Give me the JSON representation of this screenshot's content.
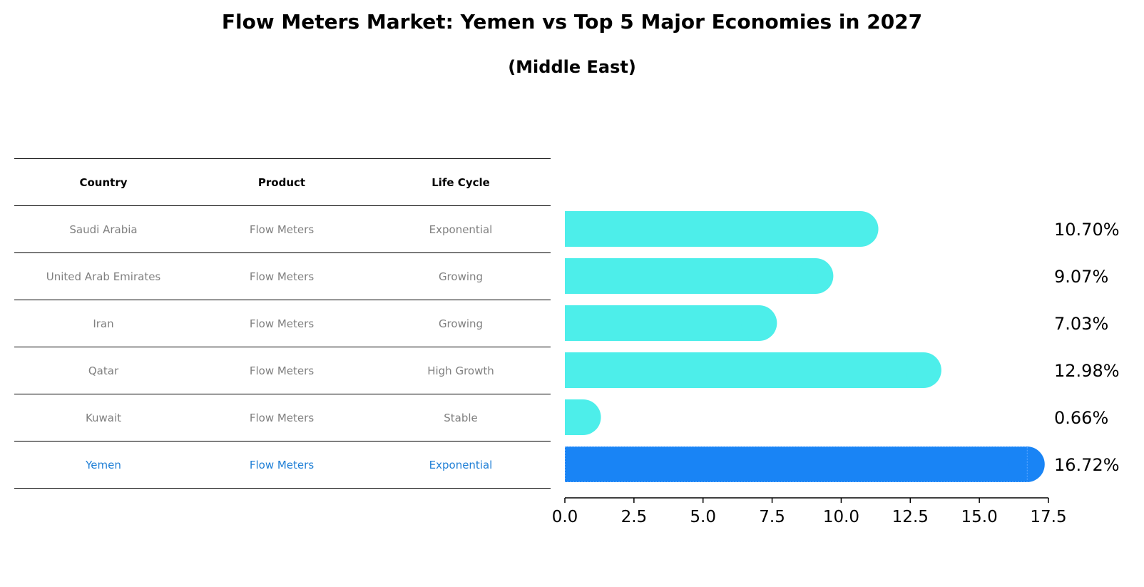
{
  "title": "Flow Meters Market: Yemen vs Top 5 Major Economies in 2027",
  "subtitle": "(Middle East)",
  "table": {
    "headers": [
      "Country",
      "Product",
      "Life Cycle"
    ],
    "rows": [
      [
        "Saudi Arabia",
        "Flow Meters",
        "Exponential"
      ],
      [
        "United Arab Emirates",
        "Flow Meters",
        "Growing"
      ],
      [
        "Iran",
        "Flow Meters",
        "Growing"
      ],
      [
        "Qatar",
        "Flow Meters",
        "High Growth"
      ],
      [
        "Kuwait",
        "Flow Meters",
        "Stable"
      ],
      [
        "Yemen",
        "Flow Meters",
        "Exponential"
      ]
    ]
  },
  "colors": {
    "bar": "#4deeea",
    "highlight": "#1984f5",
    "highlight_text": "#1f7fd6"
  },
  "chart_data": {
    "type": "bar",
    "orientation": "horizontal",
    "categories": [
      "Saudi Arabia",
      "United Arab Emirates",
      "Iran",
      "Qatar",
      "Kuwait",
      "Yemen"
    ],
    "values": [
      10.7,
      9.07,
      7.03,
      12.98,
      0.66,
      16.72
    ],
    "labels": [
      "10.70%",
      "9.07%",
      "7.03%",
      "12.98%",
      "0.66%",
      "16.72%"
    ],
    "highlight": "Yemen",
    "xlim": [
      0,
      17.5
    ],
    "xticks": [
      "0.0",
      "2.5",
      "5.0",
      "7.5",
      "10.0",
      "12.5",
      "15.0",
      "17.5"
    ],
    "xlabel": "",
    "ylabel": "",
    "grid": false
  }
}
